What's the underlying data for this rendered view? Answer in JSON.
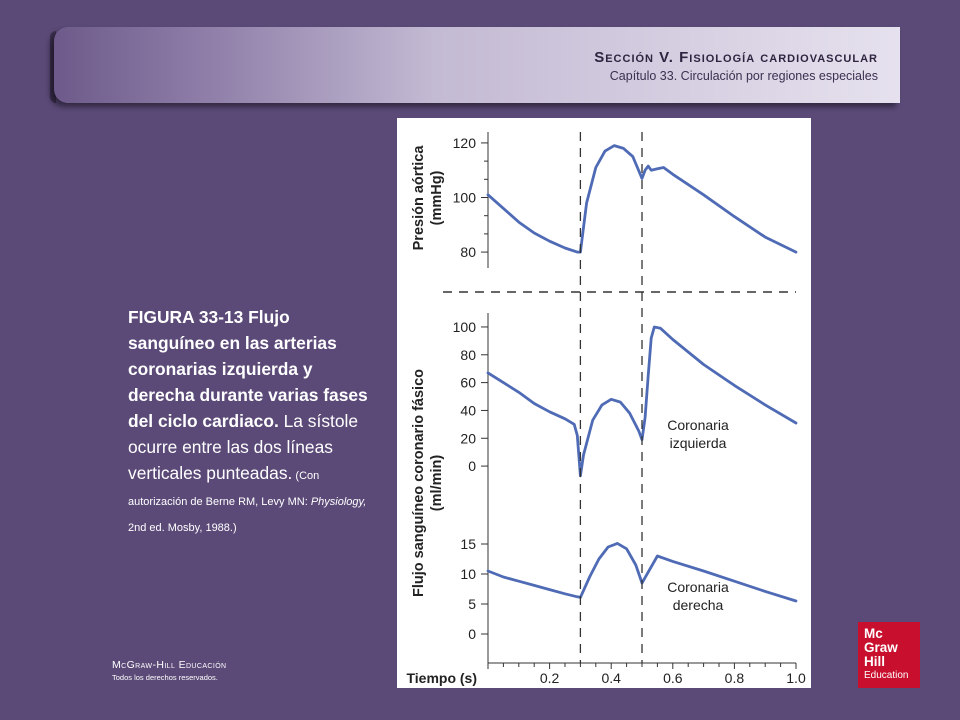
{
  "header": {
    "section": "Sección V.  Fisiología cardiovascular",
    "chapter": "Capítulo 33.  Circulación por regiones especiales"
  },
  "caption": {
    "bold": "FIGURA 33-13 Flujo sanguíneo en las arterias coronarias izquierda y derecha durante varias fases del ciclo cardiaco.",
    "normal": " La sístole ocurre entre las dos líneas verticales punteadas.",
    "credit": " (Con autorización de Berne RM, Levy MN: ",
    "credit_italic": "Physiology,",
    "credit_end": " 2nd ed. Mosby, 1988.)"
  },
  "footer": {
    "brand": "McGraw-Hill Educación",
    "rights": "Todos los derechos reservados."
  },
  "logo": {
    "line1": "Mc",
    "line2": "Graw",
    "line3": "Hill",
    "line4": "Education"
  },
  "colors": {
    "line": "#4f6bb5",
    "background": "#5b4a78",
    "logo": "#c8102e"
  },
  "chart_data": {
    "type": "line",
    "x_label": "Tiempo (s)",
    "x_ticks": [
      0.2,
      0.4,
      0.6,
      0.8,
      1.0
    ],
    "xlim": [
      0.0,
      1.0
    ],
    "systole_lines_x": [
      0.3,
      0.5
    ],
    "panels": [
      {
        "id": "aortic",
        "ylabel_line1": "Presión aórtica",
        "ylabel_line2": "(mmHg)",
        "y_ticks": [
          80,
          100,
          120
        ],
        "ylim": [
          76,
          124
        ],
        "series": [
          {
            "name": "",
            "x": [
              0.0,
              0.05,
              0.1,
              0.15,
              0.2,
              0.25,
              0.29,
              0.3,
              0.32,
              0.35,
              0.38,
              0.41,
              0.44,
              0.47,
              0.5,
              0.51,
              0.52,
              0.53,
              0.55,
              0.57,
              0.6,
              0.7,
              0.8,
              0.9,
              1.0
            ],
            "y": [
              101,
              96,
              91,
              87,
              84,
              81.5,
              80,
              80,
              98,
              111,
              117,
              119,
              118,
              115,
              107,
              110,
              111.5,
              110,
              110.5,
              111,
              108.5,
              101,
              93,
              85.5,
              80
            ]
          }
        ]
      },
      {
        "id": "left",
        "ylabel_line1": "Flujo sanguíneo coronario fásico",
        "ylabel_line2": "(ml/min)",
        "y_ticks": [
          0,
          20,
          40,
          60,
          80,
          100
        ],
        "ylim": [
          -10,
          105
        ],
        "label_line1": "Coronaria",
        "label_line2": "izquierda",
        "series": [
          {
            "name": "Coronaria izquierda",
            "x": [
              0.0,
              0.05,
              0.1,
              0.15,
              0.2,
              0.25,
              0.28,
              0.29,
              0.3,
              0.31,
              0.34,
              0.37,
              0.4,
              0.43,
              0.46,
              0.49,
              0.5,
              0.51,
              0.52,
              0.53,
              0.54,
              0.56,
              0.6,
              0.7,
              0.8,
              0.9,
              1.0
            ],
            "y": [
              67,
              60,
              53,
              45,
              39,
              34,
              30,
              22,
              -7,
              8,
              33,
              44,
              48,
              46,
              38,
              25,
              19,
              35,
              65,
              92,
              100,
              99,
              91,
              73,
              58,
              44,
              31
            ]
          }
        ]
      },
      {
        "id": "right",
        "y_ticks": [
          0,
          5,
          10,
          15
        ],
        "ylim": [
          0,
          16
        ],
        "label_line1": "Coronaria",
        "label_line2": "derecha",
        "series": [
          {
            "name": "Coronaria derecha",
            "x": [
              0.0,
              0.05,
              0.1,
              0.15,
              0.2,
              0.25,
              0.29,
              0.3,
              0.33,
              0.36,
              0.39,
              0.42,
              0.45,
              0.48,
              0.5,
              0.51,
              0.55,
              0.6,
              0.7,
              0.8,
              0.9,
              1.0
            ],
            "y": [
              10.5,
              9.5,
              8.8,
              8.1,
              7.4,
              6.7,
              6.2,
              6.1,
              9.5,
              12.5,
              14.5,
              15.1,
              14.2,
              11.5,
              8.5,
              9.4,
              13,
              12.1,
              10.5,
              8.8,
              7.1,
              5.5
            ]
          }
        ]
      }
    ]
  }
}
